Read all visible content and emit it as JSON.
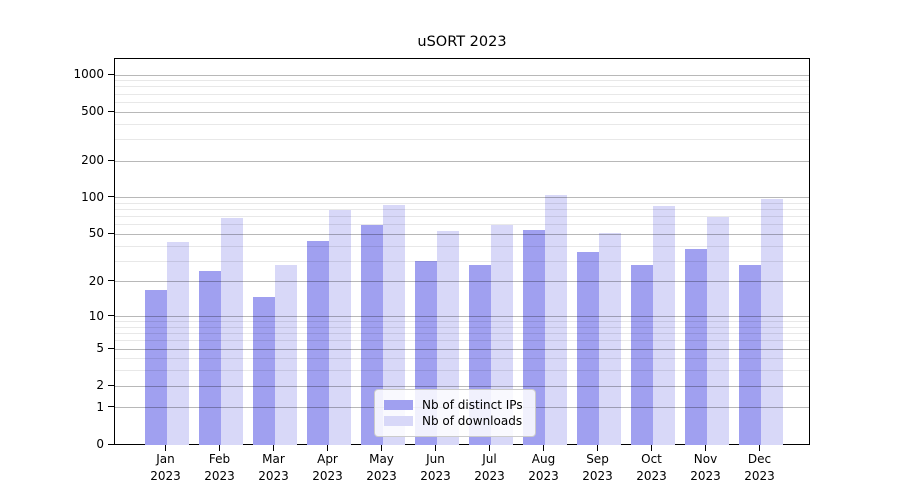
{
  "chart_data": {
    "type": "bar",
    "title": "uSORT 2023",
    "categories": [
      "Jan 2023",
      "Feb 2023",
      "Mar 2023",
      "Apr 2023",
      "May 2023",
      "Jun 2023",
      "Jul 2023",
      "Aug 2023",
      "Sep 2023",
      "Oct 2023",
      "Nov 2023",
      "Dec 2023"
    ],
    "series": [
      {
        "name": "Nb of distinct IPs",
        "color": "#a0a0f0",
        "values": [
          17,
          25,
          15,
          44,
          60,
          30,
          28,
          54,
          36,
          28,
          38,
          28
        ]
      },
      {
        "name": "Nb of downloads",
        "color": "#d8d8f8",
        "values": [
          43,
          68,
          28,
          80,
          88,
          53,
          60,
          106,
          51,
          86,
          70,
          98
        ]
      }
    ],
    "yscale": "log1p",
    "ylim": [
      0,
      1380
    ],
    "yticks": [
      0,
      1,
      2,
      5,
      10,
      20,
      50,
      100,
      200,
      500,
      1000
    ],
    "ytick_labels": [
      "0",
      "1",
      "2",
      "5",
      "10",
      "20",
      "50",
      "100",
      "200",
      "500",
      "1000"
    ],
    "minor_yticks": [
      3,
      4,
      6,
      7,
      8,
      9,
      30,
      40,
      60,
      70,
      80,
      90,
      300,
      400,
      600,
      700,
      800,
      900
    ],
    "grid": true,
    "legend_position": "lower center",
    "xlabel": "",
    "ylabel": ""
  },
  "colors": {
    "background": "#ffffff",
    "axis": "#000000",
    "bar_distinct_ips": "#a0a0f0",
    "bar_downloads": "#d8d8f8"
  }
}
